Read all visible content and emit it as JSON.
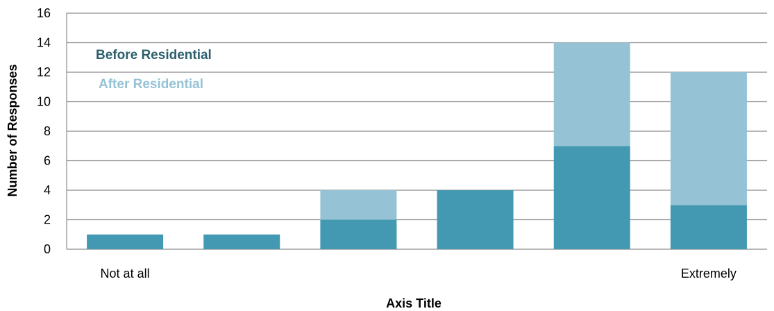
{
  "chart_data": {
    "type": "bar",
    "stacked": true,
    "title": "",
    "xlabel": "Axis Title",
    "ylabel": "Number of Responses",
    "ylim": [
      0,
      16
    ],
    "yticks": [
      "0",
      "2",
      "4",
      "6",
      "8",
      "10",
      "12",
      "14",
      "16"
    ],
    "categories": [
      "Not at all",
      "",
      "",
      "",
      "",
      "Extremely"
    ],
    "series": [
      {
        "name": "Before Residential",
        "color": "#4299b1",
        "values": [
          1,
          1,
          2,
          4,
          7,
          3
        ]
      },
      {
        "name": "After Residential",
        "color": "#95c3d5",
        "values": [
          0,
          0,
          2,
          0,
          7,
          9
        ]
      }
    ],
    "legend": {
      "placement": "top-left",
      "label_colors": [
        "#2c5f6b",
        "#95c3d5"
      ]
    },
    "grid": {
      "horizontal": true,
      "color": "#8c8c8c"
    }
  }
}
